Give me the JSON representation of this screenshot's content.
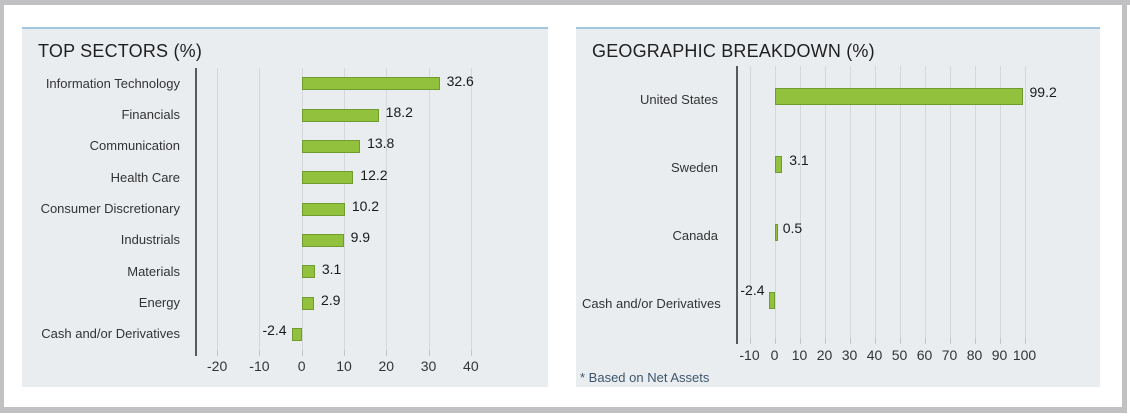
{
  "page": {
    "background_color": "#ffffff",
    "frame_color": "#c1c1c3",
    "panel_background": "#eaedf0",
    "panel_top_rule_color": "#a3c7e0"
  },
  "chart_data": [
    {
      "type": "bar",
      "orientation": "horizontal",
      "title": "TOP SECTORS (%)",
      "categories": [
        "Information Technology",
        "Financials",
        "Communication",
        "Health Care",
        "Consumer Discretionary",
        "Industrials",
        "Materials",
        "Energy",
        "Cash and/or Derivatives"
      ],
      "values": [
        32.6,
        18.2,
        13.8,
        12.2,
        10.2,
        9.9,
        3.1,
        2.9,
        -2.4
      ],
      "xlim": [
        -25,
        45
      ],
      "xticks": [
        -20,
        -10,
        0,
        10,
        20,
        30,
        40
      ],
      "grid": true,
      "legend": "none",
      "bar_color": "#92c13d",
      "bar_border_color": "#6f9b2f",
      "value_labels": "end-of-bar, one decimal"
    },
    {
      "type": "bar",
      "orientation": "horizontal",
      "title": "GEOGRAPHIC BREAKDOWN (%)",
      "categories": [
        "United States",
        "Sweden",
        "Canada",
        "Cash and/or Derivatives"
      ],
      "values": [
        99.2,
        3.1,
        0.5,
        -2.4
      ],
      "xlim": [
        -15,
        105
      ],
      "xticks": [
        -10,
        0,
        10,
        20,
        30,
        40,
        50,
        60,
        70,
        80,
        90,
        100
      ],
      "grid": true,
      "legend": "none",
      "bar_color": "#92c13d",
      "bar_border_color": "#6f9b2f",
      "value_labels": "end-of-bar, one decimal",
      "footnote": "* Based on Net Assets"
    }
  ]
}
